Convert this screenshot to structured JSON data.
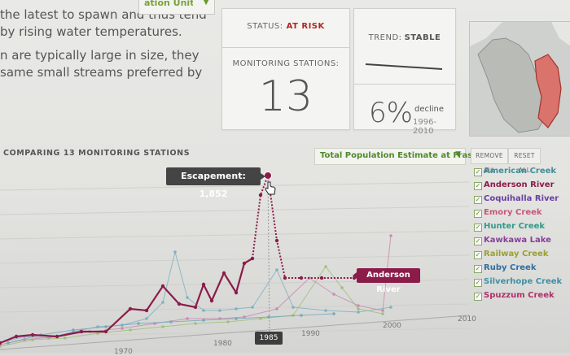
{
  "intro": {
    "line1": "the latest to spawn and thus tend",
    "line2": "by rising water temperatures.",
    "line3": "n are typically large in size, they",
    "line4": "same small streams preferred by",
    "dropdown_value": "ation Unit"
  },
  "status": {
    "label": "STATUS:",
    "value": "AT RISK"
  },
  "monitoring": {
    "label": "MONITORING STATIONS:",
    "value": "13"
  },
  "trend": {
    "label": "TREND:",
    "value": "STABLE",
    "percent": "6%",
    "direction": "decline",
    "range": "1996-2010"
  },
  "chart_header": {
    "title": "COMPARING 13 MONITORING STATIONS",
    "dropdown": "Total Population Estimate at Fraser Mouth",
    "remove_all": "REMOVE ALL",
    "reset_all": "RESET ALL"
  },
  "legend": [
    {
      "name": "American Creek",
      "color": "#3f8f9a"
    },
    {
      "name": "Anderson River",
      "color": "#8b1c4a"
    },
    {
      "name": "Coquihalla River",
      "color": "#6a3fa0"
    },
    {
      "name": "Emory Creek",
      "color": "#c9577a"
    },
    {
      "name": "Hunter Creek",
      "color": "#2f9a8a"
    },
    {
      "name": "Kawkawa Lake",
      "color": "#8a3f9a"
    },
    {
      "name": "Railway Creek",
      "color": "#9aa033"
    },
    {
      "name": "Ruby Creek",
      "color": "#2f6fa0"
    },
    {
      "name": "Silverhope Creek",
      "color": "#3f8fa8"
    },
    {
      "name": "Spuzzum Creek",
      "color": "#b0306a"
    }
  ],
  "tooltip": {
    "text": "Escapement: 1,852"
  },
  "highlight_label": "Anderson River",
  "year_badge": "1985",
  "chart_data": {
    "type": "line",
    "x_ticks": [
      "1970",
      "1980",
      "1990",
      "2000",
      "2010"
    ],
    "highlight": {
      "name": "Anderson River",
      "x": 1985,
      "y": 1852
    }
  }
}
